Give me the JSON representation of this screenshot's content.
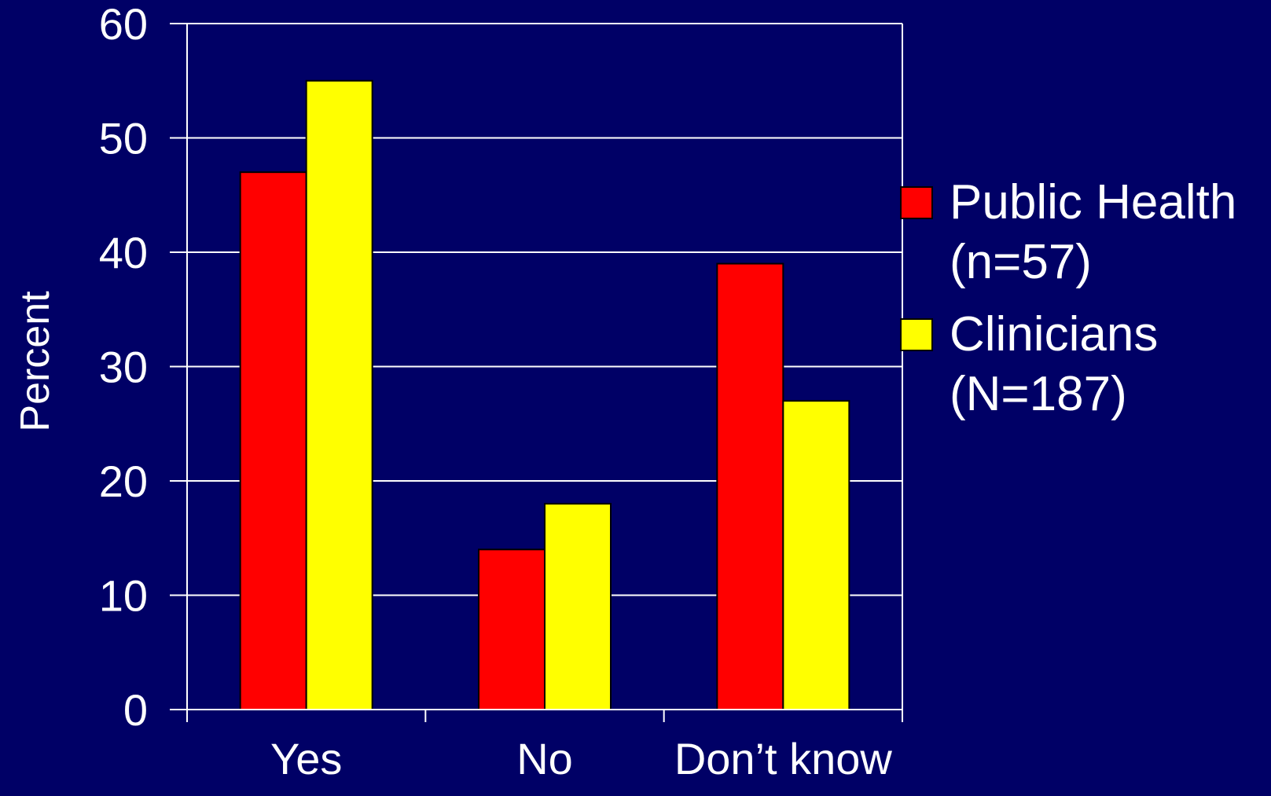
{
  "chart_data": {
    "type": "bar",
    "categories": [
      "Yes",
      "No",
      "Don’t know"
    ],
    "series": [
      {
        "name": "Public Health (n=57)",
        "name_lines": [
          "Public Health",
          "(n=57)"
        ],
        "color": "#ff0000",
        "values": [
          47,
          14,
          39
        ]
      },
      {
        "name": "Clinicians (N=187)",
        "name_lines": [
          "Clinicians",
          "(N=187)"
        ],
        "color": "#ffff00",
        "values": [
          55,
          18,
          27
        ]
      }
    ],
    "ylabel": "Percent",
    "ylim": [
      0,
      60
    ],
    "yticks": [
      0,
      10,
      20,
      30,
      40,
      50,
      60
    ],
    "grid": true,
    "legend_position": "right",
    "colors": {
      "background": "#000066",
      "axis": "#ffffff",
      "text": "#ffffff",
      "bar_outline": "#000000"
    }
  }
}
